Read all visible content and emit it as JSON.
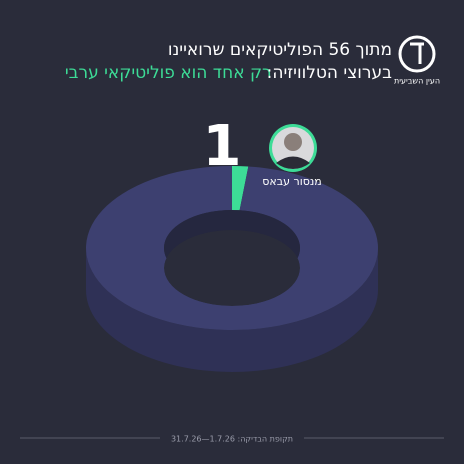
{
  "chart_data": {
    "type": "donut",
    "title": "מתוך 56 הפוליטיקאים שרואיינו",
    "subtitle": "בערוצי הטלוויזיה:",
    "highlight": "רק אחד הוא פוליטיקאי ערבי",
    "categories": [
      null,
      "מנסור עבאס"
    ],
    "values": [
      55,
      1
    ],
    "colors": [
      "#3d4070",
      "#3ddc97"
    ],
    "logo": "העין השביעית",
    "footer": "תקופת הבדיקה: 1.7.26—31.7.26"
  }
}
